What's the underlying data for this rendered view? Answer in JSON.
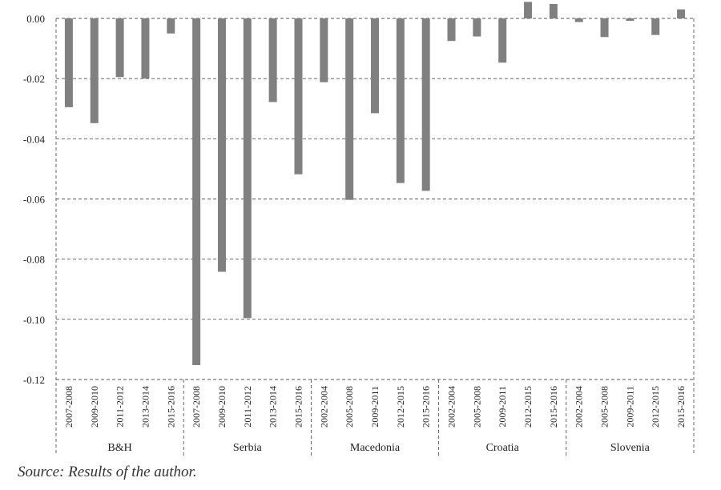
{
  "chart_data": {
    "type": "bar",
    "title": "",
    "xlabel": "",
    "ylabel": "",
    "ylim": [
      -0.12,
      0.0
    ],
    "yticks": [
      "0.00",
      "-0.02",
      "-0.04",
      "-0.06",
      "-0.08",
      "-0.10",
      "-0.12"
    ],
    "grid": true,
    "legend": "none",
    "bar_color": "#808080",
    "groups": [
      {
        "name": "B&H",
        "categories": [
          "2007-2008",
          "2009-2010",
          "2011-2012",
          "2013-2014",
          "2015-2016"
        ],
        "values": [
          -0.0295,
          -0.0348,
          -0.0195,
          -0.02,
          -0.005
        ]
      },
      {
        "name": "Serbia",
        "categories": [
          "2007-2008",
          "2009-2010",
          "2011-2012",
          "2013-2014",
          "2015-2016"
        ],
        "values": [
          -0.1152,
          -0.0842,
          -0.0996,
          -0.0278,
          -0.0518
        ]
      },
      {
        "name": "Macedonia",
        "categories": [
          "2002-2004",
          "2005-2008",
          "2009-2011",
          "2012-2015",
          "2015-2016"
        ],
        "values": [
          -0.0212,
          -0.0603,
          -0.0315,
          -0.0547,
          -0.0573
        ]
      },
      {
        "name": "Croatia",
        "categories": [
          "2002-2004",
          "2005-2008",
          "2009-2011",
          "2012-2015",
          "2015-2016"
        ],
        "values": [
          -0.0075,
          -0.006,
          -0.0147,
          0.0055,
          0.0048
        ]
      },
      {
        "name": "Slovenia",
        "categories": [
          "2002-2004",
          "2005-2008",
          "2009-2011",
          "2012-2015",
          "2015-2016"
        ],
        "values": [
          -0.0012,
          -0.0062,
          -0.0008,
          -0.0055,
          0.003
        ]
      }
    ]
  },
  "source_note": "Source: Results of the author."
}
